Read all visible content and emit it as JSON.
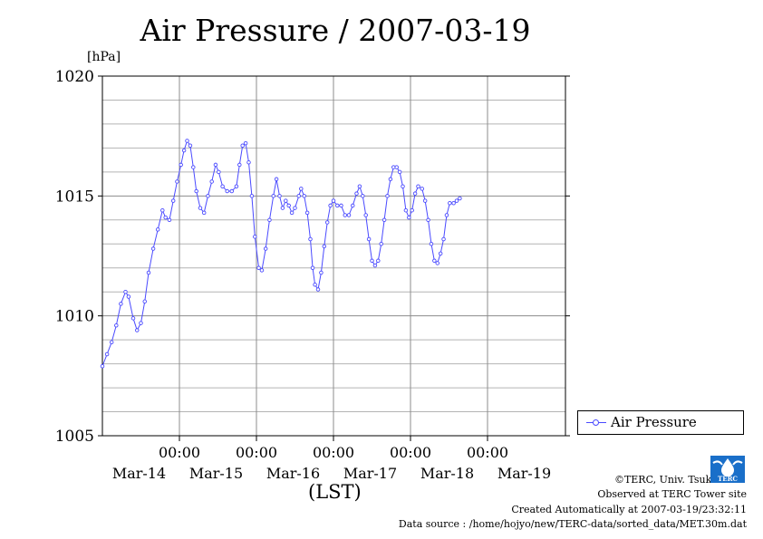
{
  "chart_data": {
    "type": "line",
    "title": "Air Pressure / 2007-03-19",
    "ylabel": "[hPa]",
    "xlabel": "(LST)",
    "ylim": [
      1005,
      1020
    ],
    "y_ticks": [
      1005,
      1010,
      1015,
      1020
    ],
    "xlim": [
      0,
      6.05
    ],
    "x_ticks": [
      {
        "x": 1,
        "time": "00:00",
        "date": "Mar-15"
      },
      {
        "x": 2,
        "time": "00:00",
        "date": "Mar-16"
      },
      {
        "x": 3,
        "time": "00:00",
        "date": "Mar-17"
      },
      {
        "x": 4,
        "time": "00:00",
        "date": "Mar-18"
      },
      {
        "x": 5,
        "time": "00:00",
        "date": "Mar-19"
      }
    ],
    "date_labels": [
      "Mar-14",
      "Mar-15",
      "Mar-16",
      "Mar-17",
      "Mar-18",
      "Mar-19"
    ],
    "grid": true,
    "legend_position": "right",
    "series": [
      {
        "name": "Air Pressure",
        "color": "#4a4aff",
        "points": [
          [
            0.0,
            1007.9
          ],
          [
            0.06,
            1008.4
          ],
          [
            0.12,
            1008.9
          ],
          [
            0.18,
            1009.6
          ],
          [
            0.24,
            1010.5
          ],
          [
            0.3,
            1011.0
          ],
          [
            0.34,
            1010.8
          ],
          [
            0.4,
            1009.9
          ],
          [
            0.45,
            1009.4
          ],
          [
            0.5,
            1009.7
          ],
          [
            0.55,
            1010.6
          ],
          [
            0.6,
            1011.8
          ],
          [
            0.66,
            1012.8
          ],
          [
            0.72,
            1013.6
          ],
          [
            0.78,
            1014.4
          ],
          [
            0.82,
            1014.1
          ],
          [
            0.87,
            1014.0
          ],
          [
            0.92,
            1014.8
          ],
          [
            0.97,
            1015.6
          ],
          [
            1.02,
            1016.3
          ],
          [
            1.06,
            1016.9
          ],
          [
            1.1,
            1017.3
          ],
          [
            1.14,
            1017.1
          ],
          [
            1.18,
            1016.2
          ],
          [
            1.22,
            1015.2
          ],
          [
            1.27,
            1014.5
          ],
          [
            1.32,
            1014.3
          ],
          [
            1.37,
            1015.0
          ],
          [
            1.42,
            1015.6
          ],
          [
            1.47,
            1016.3
          ],
          [
            1.51,
            1016.0
          ],
          [
            1.56,
            1015.4
          ],
          [
            1.62,
            1015.2
          ],
          [
            1.68,
            1015.2
          ],
          [
            1.74,
            1015.4
          ],
          [
            1.78,
            1016.3
          ],
          [
            1.82,
            1017.1
          ],
          [
            1.86,
            1017.2
          ],
          [
            1.9,
            1016.4
          ],
          [
            1.94,
            1015.0
          ],
          [
            1.98,
            1013.3
          ],
          [
            2.03,
            1012.0
          ],
          [
            2.07,
            1011.9
          ],
          [
            2.12,
            1012.8
          ],
          [
            2.17,
            1014.0
          ],
          [
            2.22,
            1015.0
          ],
          [
            2.26,
            1015.7
          ],
          [
            2.3,
            1015.0
          ],
          [
            2.34,
            1014.5
          ],
          [
            2.38,
            1014.8
          ],
          [
            2.42,
            1014.6
          ],
          [
            2.46,
            1014.3
          ],
          [
            2.5,
            1014.5
          ],
          [
            2.55,
            1015.0
          ],
          [
            2.58,
            1015.3
          ],
          [
            2.62,
            1015.0
          ],
          [
            2.66,
            1014.3
          ],
          [
            2.7,
            1013.2
          ],
          [
            2.73,
            1012.0
          ],
          [
            2.76,
            1011.3
          ],
          [
            2.8,
            1011.1
          ],
          [
            2.84,
            1011.8
          ],
          [
            2.88,
            1012.9
          ],
          [
            2.92,
            1013.9
          ],
          [
            2.96,
            1014.6
          ],
          [
            3.0,
            1014.8
          ],
          [
            3.05,
            1014.6
          ],
          [
            3.1,
            1014.6
          ],
          [
            3.15,
            1014.2
          ],
          [
            3.2,
            1014.2
          ],
          [
            3.25,
            1014.6
          ],
          [
            3.3,
            1015.1
          ],
          [
            3.34,
            1015.4
          ],
          [
            3.38,
            1015.0
          ],
          [
            3.42,
            1014.2
          ],
          [
            3.46,
            1013.2
          ],
          [
            3.5,
            1012.3
          ],
          [
            3.54,
            1012.1
          ],
          [
            3.58,
            1012.3
          ],
          [
            3.62,
            1013.0
          ],
          [
            3.66,
            1014.0
          ],
          [
            3.7,
            1015.0
          ],
          [
            3.74,
            1015.7
          ],
          [
            3.78,
            1016.2
          ],
          [
            3.82,
            1016.2
          ],
          [
            3.86,
            1016.0
          ],
          [
            3.9,
            1015.4
          ],
          [
            3.94,
            1014.4
          ],
          [
            3.98,
            1014.1
          ],
          [
            4.02,
            1014.4
          ],
          [
            4.06,
            1015.1
          ],
          [
            4.1,
            1015.4
          ],
          [
            4.15,
            1015.3
          ],
          [
            4.19,
            1014.8
          ],
          [
            4.23,
            1014.0
          ],
          [
            4.27,
            1013.0
          ],
          [
            4.31,
            1012.3
          ],
          [
            4.35,
            1012.2
          ],
          [
            4.39,
            1012.6
          ],
          [
            4.43,
            1013.2
          ],
          [
            4.47,
            1014.2
          ],
          [
            4.51,
            1014.7
          ],
          [
            4.56,
            1014.7
          ],
          [
            4.6,
            1014.8
          ],
          [
            4.64,
            1014.9
          ]
        ]
      }
    ]
  },
  "credits": {
    "copyright": "©TERC, Univ. Tsukuba",
    "observed": "Observed at TERC Tower site",
    "created": "Created Automatically at 2007-03-19/23:32:11",
    "source": "Data source : /home/hojyo/new/TERC-data/sorted_data/MET.30m.dat"
  },
  "logo": {
    "text": "TERC"
  }
}
